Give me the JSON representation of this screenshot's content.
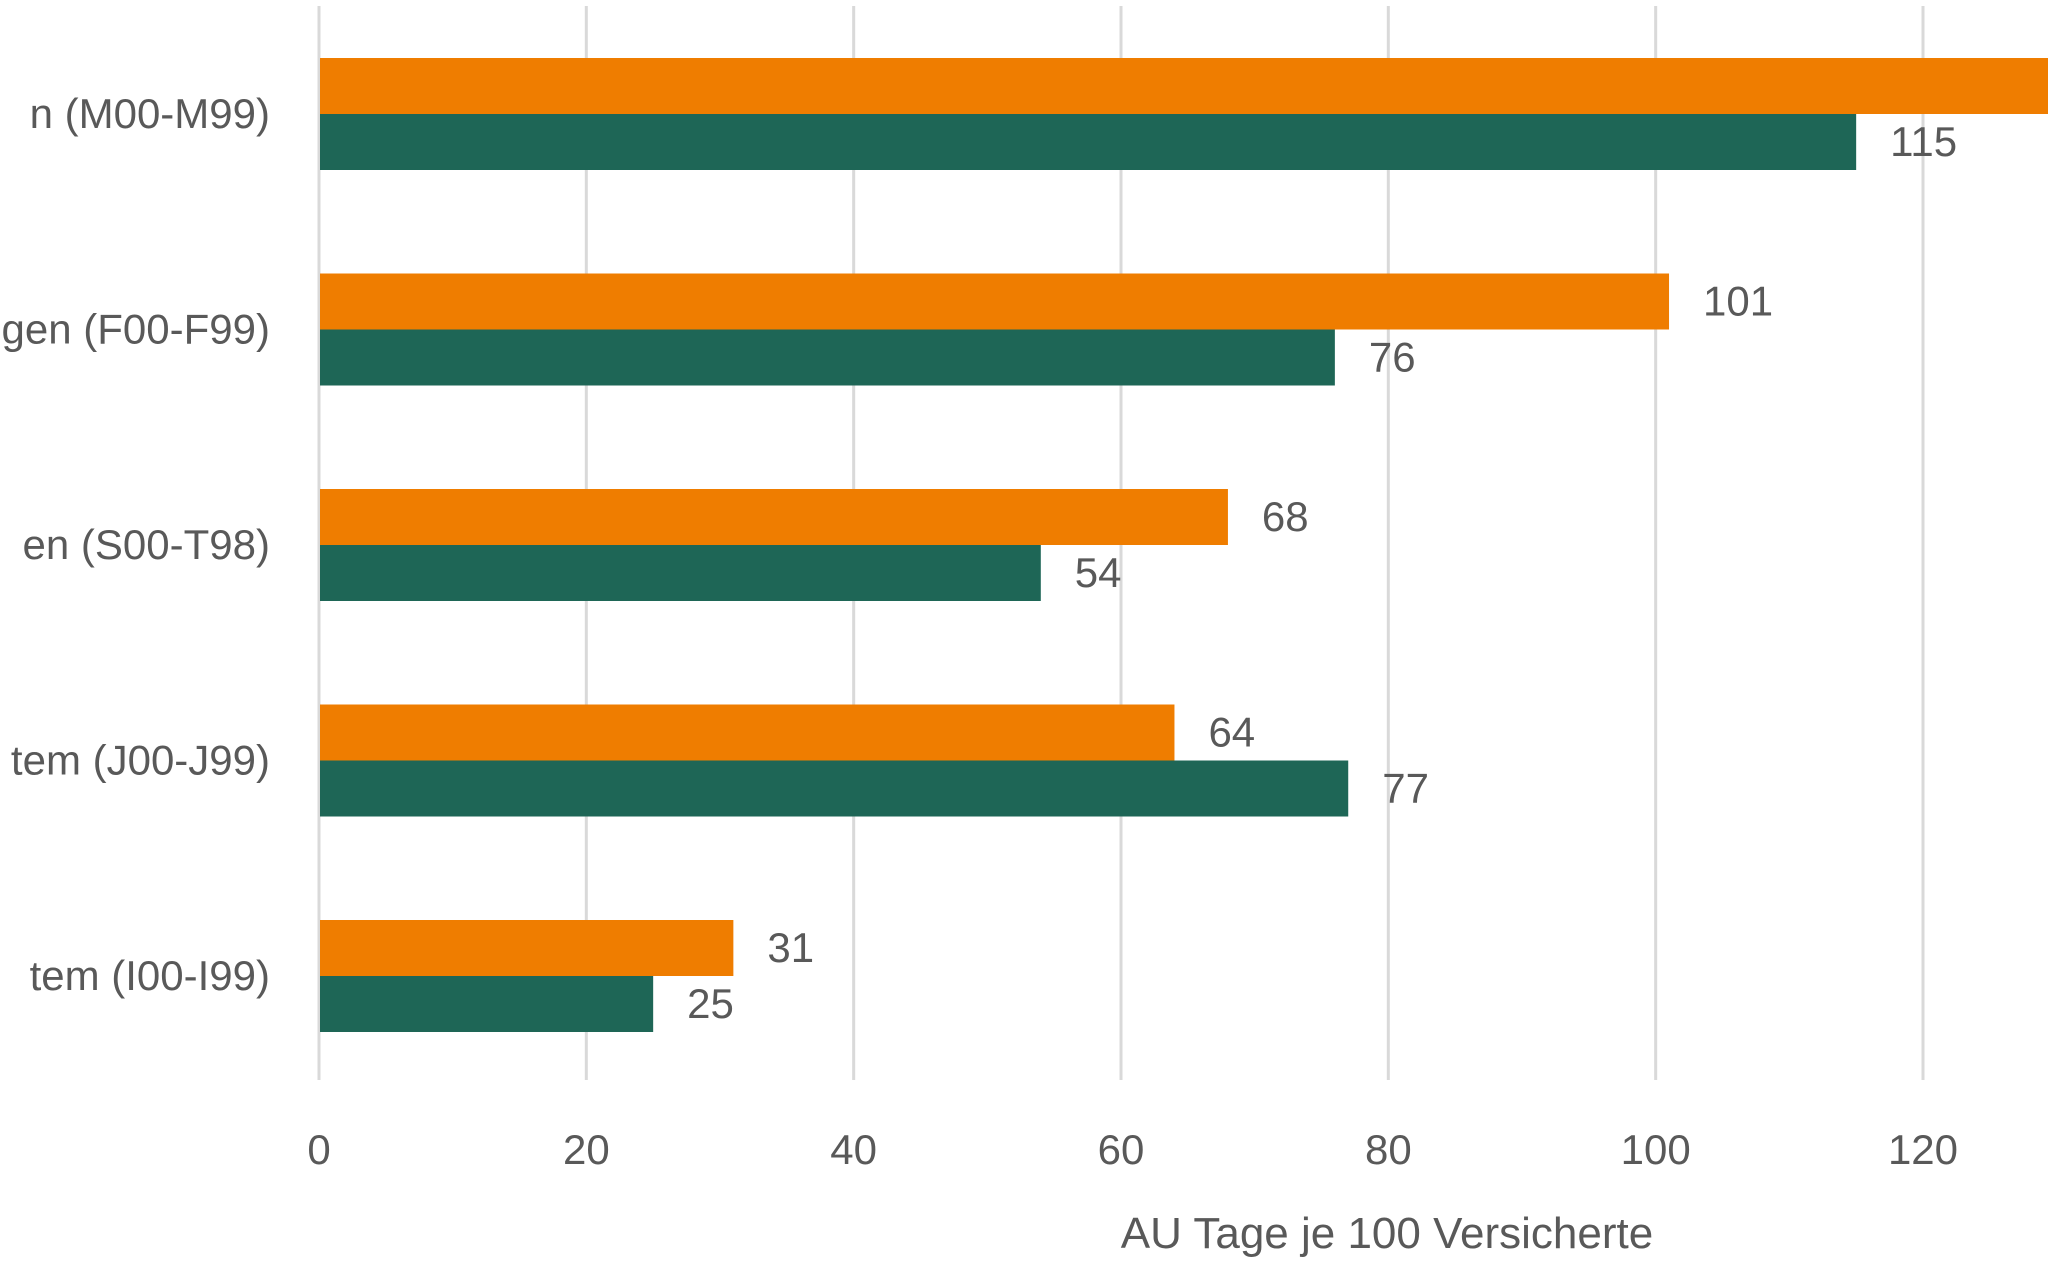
{
  "chart_data": {
    "type": "bar",
    "orientation": "horizontal",
    "categories": [
      "n (M00-M99)",
      "gen (F00-F99)",
      "en (S00-T98)",
      "tem (J00-J99)",
      "tem (I00-I99)"
    ],
    "series": [
      {
        "color": "#EF7D00",
        "values": [
          130,
          101,
          68,
          64,
          31
        ]
      },
      {
        "color": "#1E6656",
        "values": [
          115,
          76,
          54,
          77,
          25
        ]
      }
    ],
    "xlabel": "AU Tage je 100 Versicherte",
    "xticks": [
      "0",
      "20",
      "40",
      "60",
      "80",
      "100",
      "120"
    ],
    "xlim": [
      0,
      128
    ],
    "grid": true,
    "colors": {
      "text": "#595959",
      "grid": "#D9D9D9"
    }
  }
}
